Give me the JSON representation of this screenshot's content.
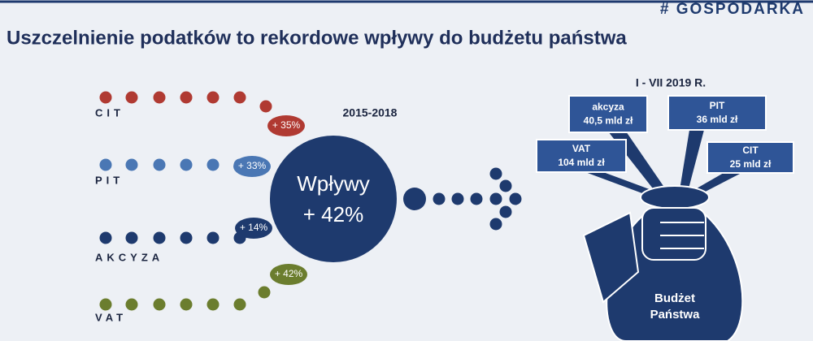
{
  "header": {
    "tag": "# GOSPODARKA",
    "title": "Uszczelnienie podatków to rekordowe wpływy do budżetu państwa"
  },
  "sources": [
    {
      "label": "CIT",
      "change": "+ 35%"
    },
    {
      "label": "PIT",
      "change": "+ 33%"
    },
    {
      "label": "AKCYZA",
      "change": "+ 14%"
    },
    {
      "label": "VAT",
      "change": "+ 42%"
    }
  ],
  "center": {
    "period": "2015-2018",
    "label": "Wpływy",
    "change": "+ 42%"
  },
  "budget": {
    "period": "I - VII 2019 R.",
    "items": [
      {
        "name": "akcyza",
        "amount": "40,5 mld zł"
      },
      {
        "name": "PIT",
        "amount": "36 mld zł"
      },
      {
        "name": "VAT",
        "amount": "104 mld zł"
      },
      {
        "name": "CIT",
        "amount": "25 mld zł"
      }
    ],
    "label_line1": "Budżet",
    "label_line2": "Państwa"
  }
}
